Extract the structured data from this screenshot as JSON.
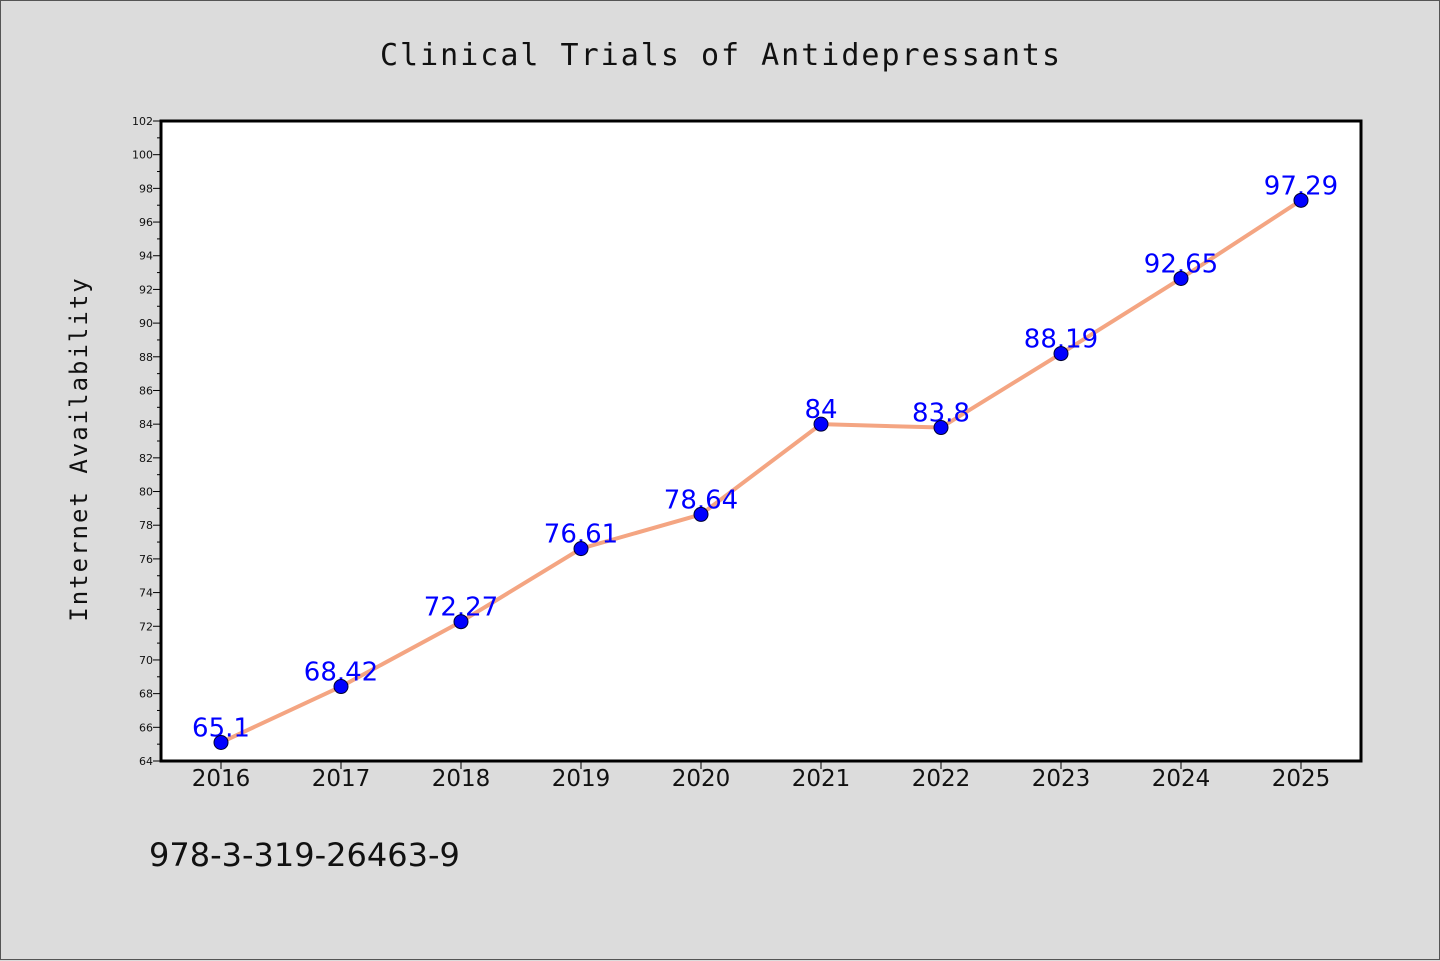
{
  "chart_data": {
    "type": "line",
    "title": "Clinical Trials of Antidepressants",
    "xlabel": "",
    "ylabel": "Internet Availability",
    "categories": [
      "2016",
      "2017",
      "2018",
      "2019",
      "2020",
      "2021",
      "2022",
      "2023",
      "2024",
      "2025"
    ],
    "series": [
      {
        "values": [
          65.1,
          68.42,
          72.27,
          76.61,
          78.64,
          84,
          83.8,
          88.19,
          92.65,
          97.29
        ],
        "data_labels": [
          "65.1",
          "68.42",
          "72.27",
          "76.61",
          "78.64",
          "84",
          "83.8",
          "88.19",
          "92.65",
          "97.29"
        ],
        "line_color": "#f4a582",
        "marker_color": "#0000ff",
        "label_color": "#0000ff"
      }
    ],
    "ylim": [
      64,
      102
    ],
    "yticks": [
      "64",
      "66",
      "68",
      "70",
      "72",
      "74",
      "76",
      "78",
      "80",
      "82",
      "84",
      "86",
      "88",
      "90",
      "92",
      "94",
      "96",
      "98",
      "100",
      "102"
    ],
    "grid": false,
    "legend": "none"
  },
  "footer": {
    "text": "978-3-319-26463-9"
  }
}
